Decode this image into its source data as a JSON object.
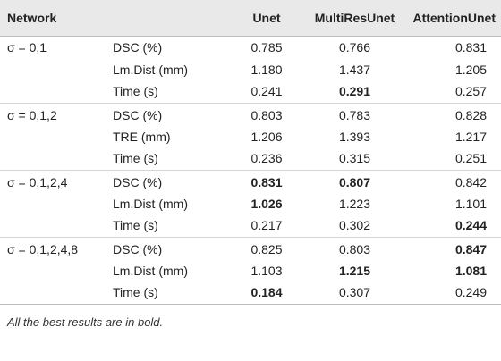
{
  "header": {
    "network": "Network",
    "unet": "Unet",
    "multiresunet": "MultiResUnet",
    "attentionunet": "AttentionUnet"
  },
  "rows": [
    {
      "group": "σ = 0,1",
      "metric": "DSC (%)",
      "unet": "0.785",
      "multiresunet": "0.766",
      "attentionunet": "0.831",
      "bold": []
    },
    {
      "group": "",
      "metric": "Lm.Dist (mm)",
      "unet": "1.180",
      "multiresunet": "1.437",
      "attentionunet": "1.205",
      "bold": []
    },
    {
      "group": "",
      "metric": "Time (s)",
      "unet": "0.241",
      "multiresunet": "0.291",
      "attentionunet": "0.257",
      "bold": [
        "multiresunet"
      ]
    },
    {
      "group": "σ = 0,1,2",
      "metric": "DSC (%)",
      "unet": "0.803",
      "multiresunet": "0.783",
      "attentionunet": "0.828",
      "bold": []
    },
    {
      "group": "",
      "metric": "TRE (mm)",
      "unet": "1.206",
      "multiresunet": "1.393",
      "attentionunet": "1.217",
      "bold": []
    },
    {
      "group": "",
      "metric": "Time (s)",
      "unet": "0.236",
      "multiresunet": "0.315",
      "attentionunet": "0.251",
      "bold": []
    },
    {
      "group": "σ = 0,1,2,4",
      "metric": "DSC (%)",
      "unet": "0.831",
      "multiresunet": "0.807",
      "attentionunet": "0.842",
      "bold": [
        "unet",
        "multiresunet"
      ]
    },
    {
      "group": "",
      "metric": "Lm.Dist (mm)",
      "unet": "1.026",
      "multiresunet": "1.223",
      "attentionunet": "1.101",
      "bold": [
        "unet"
      ]
    },
    {
      "group": "",
      "metric": "Time (s)",
      "unet": "0.217",
      "multiresunet": "0.302",
      "attentionunet": "0.244",
      "bold": [
        "attentionunet"
      ]
    },
    {
      "group": "σ = 0,1,2,4,8",
      "metric": "DSC (%)",
      "unet": "0.825",
      "multiresunet": "0.803",
      "attentionunet": "0.847",
      "bold": [
        "attentionunet"
      ]
    },
    {
      "group": "",
      "metric": "Lm.Dist (mm)",
      "unet": "1.103",
      "multiresunet": "1.215",
      "attentionunet": "1.081",
      "bold": [
        "multiresunet",
        "attentionunet"
      ]
    },
    {
      "group": "",
      "metric": "Time (s)",
      "unet": "0.184",
      "multiresunet": "0.307",
      "attentionunet": "0.249",
      "bold": [
        "unet"
      ]
    }
  ],
  "footnote": "All the best results are in bold.",
  "colors": {
    "header_background": "#e9e9ea",
    "text": "#222222",
    "rule": "#bdbdbd"
  }
}
